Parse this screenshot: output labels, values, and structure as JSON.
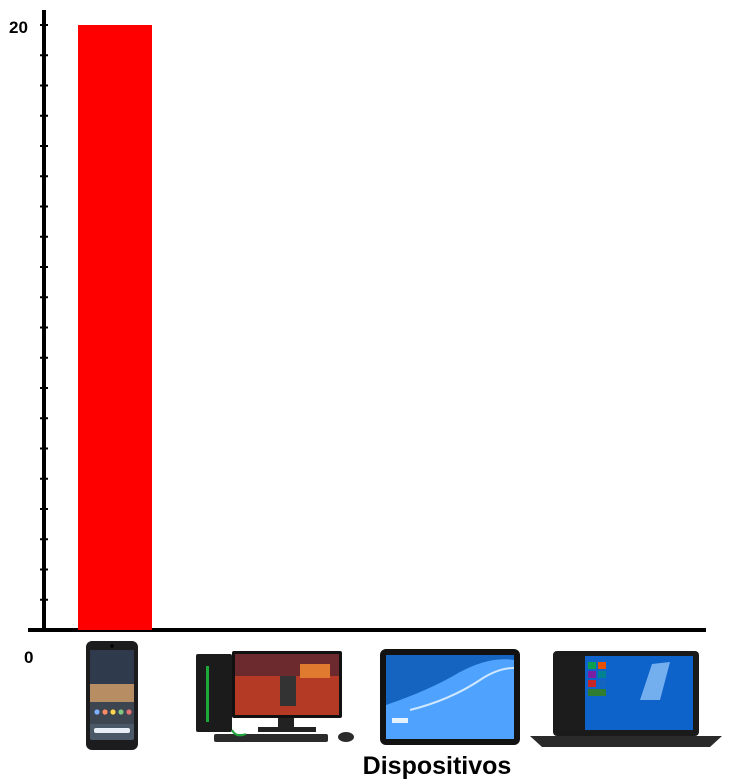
{
  "chart_data": {
    "type": "bar",
    "categories": [
      "smartphone-icon",
      "desktop-pc-icon",
      "tablet-icon",
      "laptop-icon"
    ],
    "values": [
      20,
      0,
      0,
      0
    ],
    "ylim": [
      0,
      20
    ],
    "y_tick_labels": [
      "0",
      "20"
    ],
    "xlabel": "Dispositivos",
    "ylabel": "",
    "title": "",
    "grid": false,
    "bar_color": "#ff0000",
    "axis_color": "#000000"
  }
}
